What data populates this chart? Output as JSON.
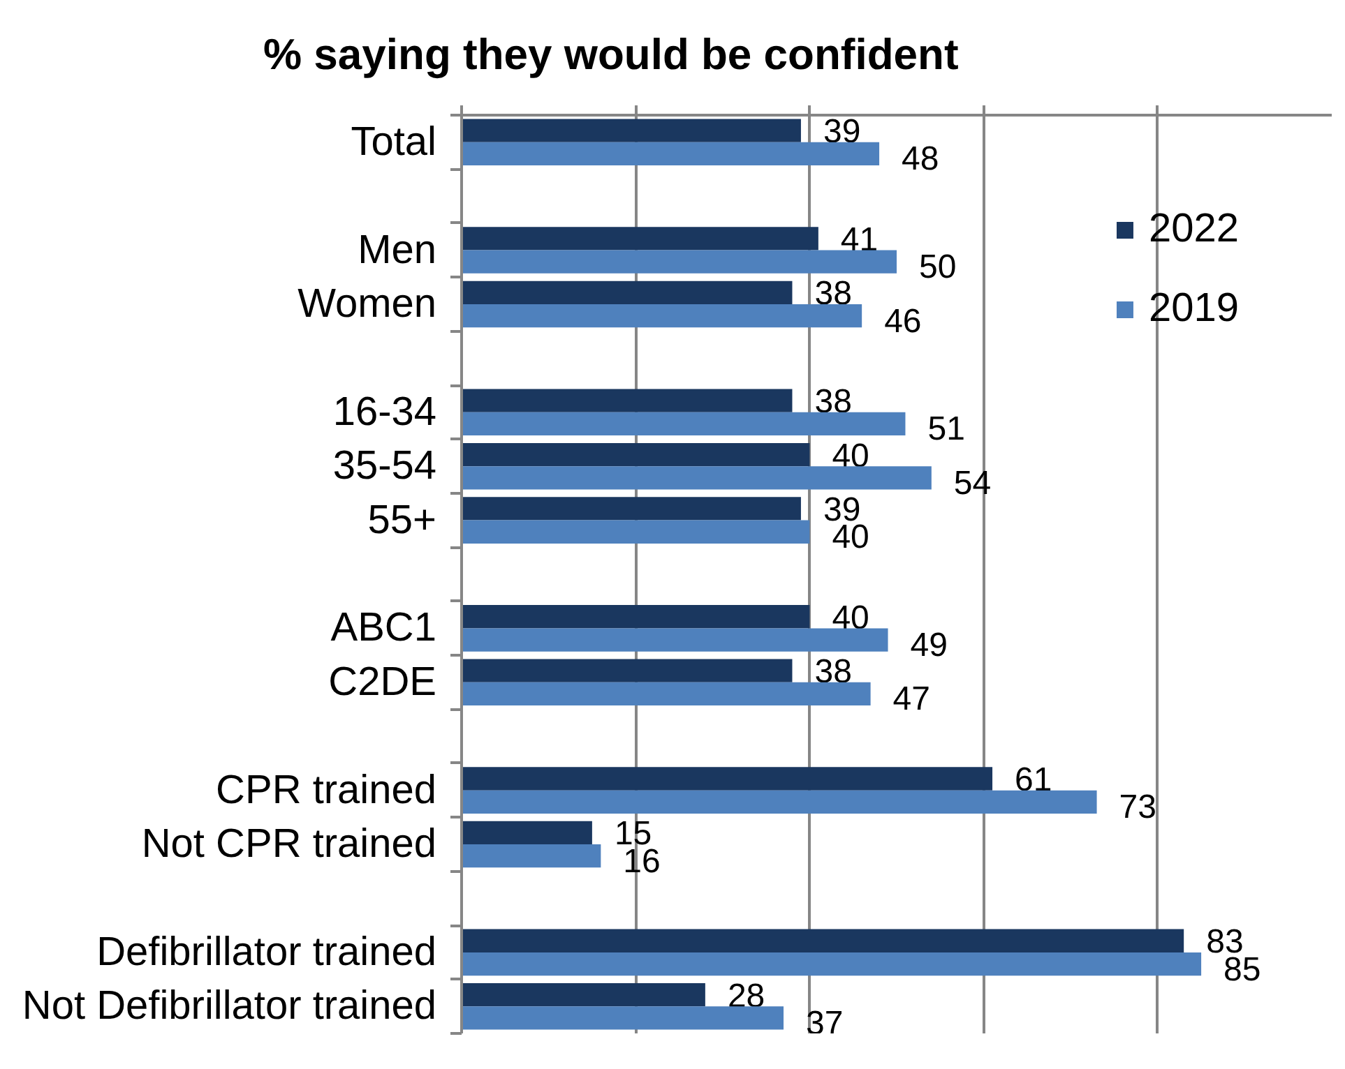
{
  "chart_data": {
    "type": "bar",
    "orientation": "horizontal",
    "title": "% saying they would be confident",
    "categories": [
      "Total",
      null,
      "Men",
      "Women",
      null,
      "16-34",
      "35-54",
      "55+",
      null,
      "ABC1",
      "C2DE",
      null,
      "CPR trained",
      "Not CPR trained",
      null,
      "Defibrillator trained",
      "Not Defibrillator trained"
    ],
    "series": [
      {
        "name": "2022",
        "color": "#1a375f",
        "values": [
          39,
          null,
          41,
          38,
          null,
          38,
          40,
          39,
          null,
          40,
          38,
          null,
          61,
          15,
          null,
          83,
          28
        ]
      },
      {
        "name": "2019",
        "color": "#4f81bd",
        "values": [
          48,
          null,
          50,
          46,
          null,
          51,
          54,
          40,
          null,
          49,
          47,
          null,
          73,
          16,
          null,
          85,
          37
        ]
      }
    ],
    "xlim": [
      0,
      100
    ],
    "xticks": [
      {
        "value": 0,
        "label": null
      },
      {
        "value": 20,
        "label": null
      },
      {
        "value": 40,
        "label": null
      },
      {
        "value": 60,
        "label": null
      },
      {
        "value": 80,
        "label": null
      }
    ],
    "tick_labels": "y",
    "grid": "x",
    "legend": "top right",
    "data_labels": true
  }
}
